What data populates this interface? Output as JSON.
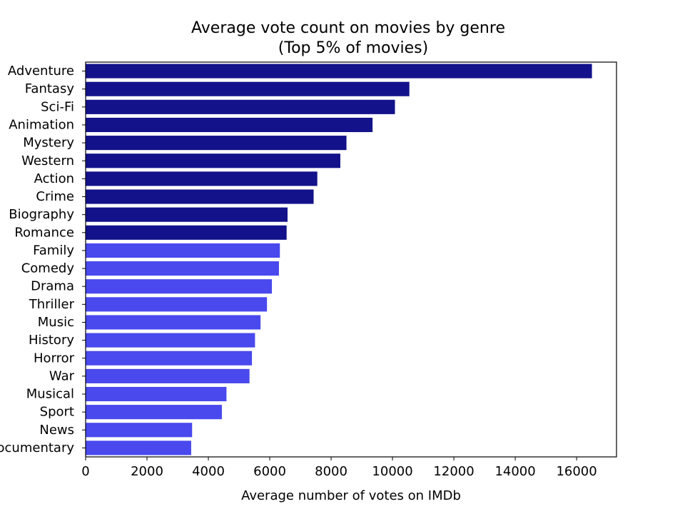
{
  "chart_data": {
    "type": "bar",
    "orientation": "horizontal",
    "title": "Average vote count on movies by genre",
    "subtitle": "(Top 5% of movies)",
    "xlabel": "Average number of votes on IMDb",
    "ylabel": "",
    "xlim": [
      0,
      17300
    ],
    "xticks": [
      0,
      2000,
      4000,
      6000,
      8000,
      10000,
      12000,
      14000,
      16000
    ],
    "grid": false,
    "categories": [
      "Adventure",
      "Fantasy",
      "Sci-Fi",
      "Animation",
      "Mystery",
      "Western",
      "Action",
      "Crime",
      "Biography",
      "Romance",
      "Family",
      "Comedy",
      "Drama",
      "Thriller",
      "Music",
      "History",
      "Horror",
      "War",
      "Musical",
      "Sport",
      "News",
      "Documentary"
    ],
    "values": [
      16500,
      10550,
      10080,
      9350,
      8500,
      8300,
      7550,
      7430,
      6580,
      6550,
      6330,
      6300,
      6070,
      5910,
      5700,
      5520,
      5420,
      5340,
      4590,
      4440,
      3470,
      3440
    ],
    "top_group_count": 10,
    "colors": {
      "top_group": "#13128a",
      "rest": "#4949ee"
    }
  }
}
